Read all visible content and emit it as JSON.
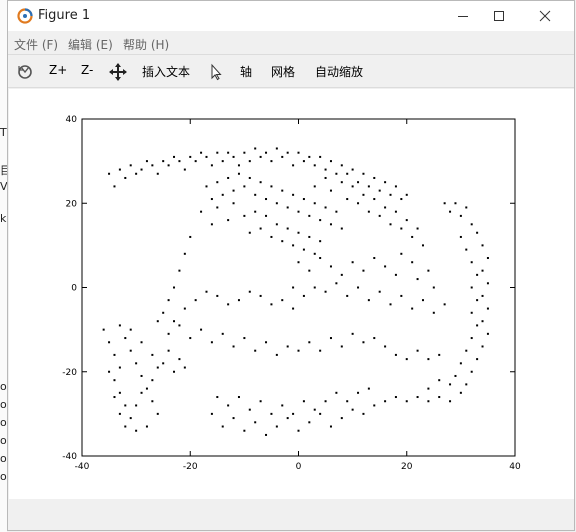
{
  "window": {
    "title": "Figure 1"
  },
  "menu": {
    "items": [
      {
        "label": "文件 (F)"
      },
      {
        "label": "编辑 (E)"
      },
      {
        "label": "帮助 (H)"
      }
    ]
  },
  "toolbar": {
    "rotate_icon": "rotate-icon",
    "zoom_in": "Z+",
    "zoom_out": "Z-",
    "pan_icon": "pan-icon",
    "insert_text": "插入文本",
    "pointer_icon": "cursor-icon",
    "axis": "轴",
    "grid": "网格",
    "autoscale": "自动缩放"
  },
  "background_fragments": [
    "T",
    "目",
    "V",
    "k",
    "ou",
    "ou",
    "ou",
    "ou",
    "ou",
    "ou"
  ],
  "chart_data": {
    "type": "scatter",
    "title": "",
    "xlabel": "",
    "ylabel": "",
    "xlim": [
      -40,
      40
    ],
    "ylim": [
      -40,
      40
    ],
    "xticks": [
      -40,
      -20,
      0,
      20,
      40
    ],
    "yticks": [
      -40,
      -20,
      0,
      20,
      40
    ],
    "grid": false,
    "marker_color": "#000000",
    "description_of_shape": "points arranged in a looping ribbon (Swiss-roll-like band)",
    "series": [
      {
        "points": [
          [
            -35,
            27
          ],
          [
            -34,
            24
          ],
          [
            -33,
            28
          ],
          [
            -32,
            26
          ],
          [
            -31,
            29
          ],
          [
            -30,
            27
          ],
          [
            -29,
            28
          ],
          [
            -28,
            30
          ],
          [
            -27,
            29
          ],
          [
            -26,
            27
          ],
          [
            -25,
            30
          ],
          [
            -24,
            29
          ],
          [
            -23,
            31
          ],
          [
            -22,
            30
          ],
          [
            -21,
            28
          ],
          [
            -20,
            31
          ],
          [
            -19,
            30
          ],
          [
            -18,
            32
          ],
          [
            -17,
            31
          ],
          [
            -16,
            29
          ],
          [
            -15,
            32
          ],
          [
            -14,
            30
          ],
          [
            -13,
            32
          ],
          [
            -12,
            31
          ],
          [
            -11,
            29
          ],
          [
            -10,
            32
          ],
          [
            -9,
            30
          ],
          [
            -8,
            33
          ],
          [
            -7,
            31
          ],
          [
            -6,
            32
          ],
          [
            -5,
            30
          ],
          [
            -4,
            33
          ],
          [
            -3,
            31
          ],
          [
            -2,
            32
          ],
          [
            -1,
            29
          ],
          [
            0,
            32
          ],
          [
            1,
            30
          ],
          [
            2,
            31
          ],
          [
            3,
            29
          ],
          [
            4,
            31
          ],
          [
            5,
            28
          ],
          [
            6,
            30
          ],
          [
            7,
            27
          ],
          [
            8,
            29
          ],
          [
            9,
            27
          ],
          [
            10,
            28
          ],
          [
            11,
            25
          ],
          [
            12,
            27
          ],
          [
            13,
            24
          ],
          [
            14,
            26
          ],
          [
            15,
            23
          ],
          [
            16,
            25
          ],
          [
            17,
            22
          ],
          [
            18,
            24
          ],
          [
            19,
            21
          ],
          [
            20,
            22
          ],
          [
            -17,
            24
          ],
          [
            -16,
            21
          ],
          [
            -15,
            25
          ],
          [
            -14,
            22
          ],
          [
            -13,
            26
          ],
          [
            -12,
            23
          ],
          [
            -11,
            27
          ],
          [
            -10,
            24
          ],
          [
            -9,
            26
          ],
          [
            -8,
            22
          ],
          [
            -7,
            25
          ],
          [
            -6,
            21
          ],
          [
            -5,
            24
          ],
          [
            -4,
            20
          ],
          [
            -3,
            23
          ],
          [
            -2,
            19
          ],
          [
            -1,
            22
          ],
          [
            0,
            18
          ],
          [
            1,
            21
          ],
          [
            2,
            17
          ],
          [
            3,
            20
          ],
          [
            4,
            16
          ],
          [
            5,
            19
          ],
          [
            6,
            15
          ],
          [
            7,
            18
          ],
          [
            8,
            14
          ],
          [
            -18,
            18
          ],
          [
            -16,
            15
          ],
          [
            -15,
            19
          ],
          [
            -13,
            16
          ],
          [
            -12,
            20
          ],
          [
            -10,
            17
          ],
          [
            -9,
            13
          ],
          [
            -8,
            18
          ],
          [
            -7,
            14
          ],
          [
            -6,
            17
          ],
          [
            -5,
            12
          ],
          [
            -4,
            15
          ],
          [
            -3,
            11
          ],
          [
            -2,
            14
          ],
          [
            -1,
            10
          ],
          [
            0,
            13
          ],
          [
            1,
            9
          ],
          [
            2,
            12
          ],
          [
            3,
            8
          ],
          [
            4,
            11
          ],
          [
            3,
            24
          ],
          [
            5,
            26
          ],
          [
            6,
            23
          ],
          [
            8,
            25
          ],
          [
            9,
            21
          ],
          [
            10,
            24
          ],
          [
            11,
            20
          ],
          [
            12,
            22
          ],
          [
            13,
            18
          ],
          [
            14,
            21
          ],
          [
            15,
            17
          ],
          [
            16,
            19
          ],
          [
            17,
            15
          ],
          [
            18,
            18
          ],
          [
            19,
            14
          ],
          [
            20,
            16
          ],
          [
            21,
            12
          ],
          [
            22,
            14
          ],
          [
            23,
            10
          ],
          [
            -20,
            12
          ],
          [
            -21,
            8
          ],
          [
            -22,
            4
          ],
          [
            -23,
            0
          ],
          [
            -24,
            -3
          ],
          [
            -25,
            -6
          ],
          [
            -23,
            -8
          ],
          [
            -21,
            -5
          ],
          [
            -19,
            -3
          ],
          [
            -17,
            -1
          ],
          [
            -15,
            -2
          ],
          [
            -13,
            -4
          ],
          [
            -11,
            -3
          ],
          [
            -9,
            -1
          ],
          [
            -7,
            -2
          ],
          [
            -5,
            -4
          ],
          [
            -3,
            -3
          ],
          [
            -1,
            -5
          ],
          [
            -26,
            -8
          ],
          [
            -24,
            -11
          ],
          [
            -22,
            -9
          ],
          [
            -20,
            -12
          ],
          [
            -18,
            -10
          ],
          [
            -16,
            -13
          ],
          [
            -14,
            -11
          ],
          [
            -12,
            -14
          ],
          [
            -10,
            -12
          ],
          [
            -8,
            -15
          ],
          [
            -6,
            -13
          ],
          [
            -4,
            -16
          ],
          [
            -2,
            -14
          ],
          [
            0,
            -15
          ],
          [
            2,
            -13
          ],
          [
            4,
            -15
          ],
          [
            6,
            -12
          ],
          [
            8,
            -14
          ],
          [
            10,
            -11
          ],
          [
            12,
            -13
          ],
          [
            14,
            -12
          ],
          [
            16,
            -14
          ],
          [
            18,
            -16
          ],
          [
            20,
            -17
          ],
          [
            22,
            -15
          ],
          [
            24,
            -17
          ],
          [
            26,
            -16
          ],
          [
            -1,
            0
          ],
          [
            1,
            -2
          ],
          [
            3,
            0
          ],
          [
            5,
            -1
          ],
          [
            7,
            1
          ],
          [
            9,
            -2
          ],
          [
            11,
            0
          ],
          [
            13,
            -3
          ],
          [
            15,
            -1
          ],
          [
            17,
            -4
          ],
          [
            19,
            -2
          ],
          [
            21,
            -5
          ],
          [
            23,
            -3
          ],
          [
            25,
            -6
          ],
          [
            27,
            -4
          ],
          [
            0,
            6
          ],
          [
            2,
            4
          ],
          [
            4,
            7
          ],
          [
            6,
            5
          ],
          [
            8,
            3
          ],
          [
            10,
            6
          ],
          [
            12,
            4
          ],
          [
            14,
            7
          ],
          [
            16,
            5
          ],
          [
            18,
            3
          ],
          [
            19,
            8
          ],
          [
            21,
            6
          ],
          [
            22,
            2
          ],
          [
            24,
            4
          ],
          [
            25,
            0
          ],
          [
            27,
            20
          ],
          [
            28,
            18
          ],
          [
            29,
            20
          ],
          [
            30,
            17
          ],
          [
            31,
            19
          ],
          [
            32,
            15
          ],
          [
            33,
            13
          ],
          [
            34,
            10
          ],
          [
            35,
            7
          ],
          [
            34,
            4
          ],
          [
            35,
            1
          ],
          [
            34,
            -2
          ],
          [
            35,
            -5
          ],
          [
            34,
            -8
          ],
          [
            35,
            -11
          ],
          [
            34,
            -14
          ],
          [
            33,
            -17
          ],
          [
            32,
            -20
          ],
          [
            31,
            -23
          ],
          [
            30,
            -25
          ],
          [
            28,
            -27
          ],
          [
            26,
            -26
          ],
          [
            24,
            -27
          ],
          [
            22,
            -26
          ],
          [
            20,
            -27
          ],
          [
            18,
            -26
          ],
          [
            30,
            12
          ],
          [
            31,
            9
          ],
          [
            32,
            6
          ],
          [
            33,
            3
          ],
          [
            32,
            0
          ],
          [
            33,
            -3
          ],
          [
            32,
            -6
          ],
          [
            33,
            -9
          ],
          [
            32,
            -12
          ],
          [
            31,
            -15
          ],
          [
            30,
            -18
          ],
          [
            29,
            -21
          ],
          [
            28,
            -23
          ],
          [
            26,
            -22
          ],
          [
            24,
            -24
          ],
          [
            -36,
            -10
          ],
          [
            -35,
            -13
          ],
          [
            -34,
            -16
          ],
          [
            -33,
            -19
          ],
          [
            -34,
            -22
          ],
          [
            -33,
            -25
          ],
          [
            -32,
            -28
          ],
          [
            -31,
            -31
          ],
          [
            -30,
            -34
          ],
          [
            -28,
            -33
          ],
          [
            -26,
            -30
          ],
          [
            -27,
            -27
          ],
          [
            -28,
            -24
          ],
          [
            -29,
            -21
          ],
          [
            -30,
            -18
          ],
          [
            -31,
            -15
          ],
          [
            -32,
            -12
          ],
          [
            -33,
            -9
          ],
          [
            -31,
            -10
          ],
          [
            -29,
            -13
          ],
          [
            -27,
            -16
          ],
          [
            -25,
            -18
          ],
          [
            -23,
            -20
          ],
          [
            -21,
            -19
          ],
          [
            -35,
            -20
          ],
          [
            -34,
            -26
          ],
          [
            -33,
            -30
          ],
          [
            -32,
            -33
          ],
          [
            -30,
            -28
          ],
          [
            -29,
            -25
          ],
          [
            -27,
            -22
          ],
          [
            -26,
            -19
          ],
          [
            -24,
            -15
          ],
          [
            -22,
            -17
          ],
          [
            -16,
            -30
          ],
          [
            -14,
            -33
          ],
          [
            -12,
            -31
          ],
          [
            -10,
            -34
          ],
          [
            -8,
            -32
          ],
          [
            -6,
            -35
          ],
          [
            -4,
            -33
          ],
          [
            -2,
            -31
          ],
          [
            0,
            -34
          ],
          [
            2,
            -32
          ],
          [
            4,
            -30
          ],
          [
            6,
            -33
          ],
          [
            8,
            -31
          ],
          [
            10,
            -29
          ],
          [
            12,
            -30
          ],
          [
            14,
            -28
          ],
          [
            16,
            -27
          ],
          [
            -15,
            -26
          ],
          [
            -13,
            -28
          ],
          [
            -11,
            -26
          ],
          [
            -9,
            -29
          ],
          [
            -7,
            -27
          ],
          [
            -5,
            -30
          ],
          [
            -3,
            -28
          ],
          [
            -1,
            -30
          ],
          [
            1,
            -27
          ],
          [
            3,
            -29
          ],
          [
            5,
            -27
          ],
          [
            7,
            -25
          ],
          [
            9,
            -27
          ],
          [
            11,
            -25
          ],
          [
            13,
            -24
          ]
        ]
      }
    ]
  }
}
